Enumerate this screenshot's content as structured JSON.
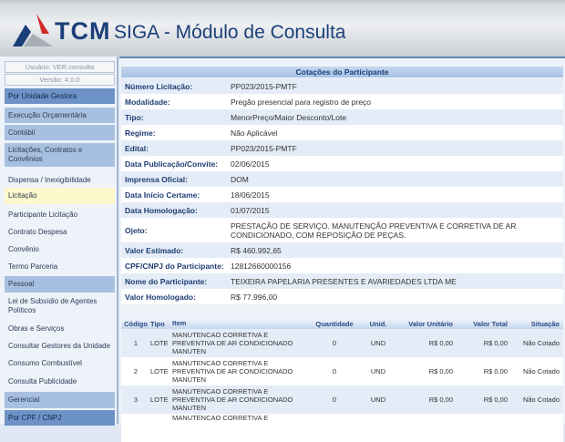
{
  "header": {
    "brand": "TCM",
    "title": "SIGA - Módulo de Consulta"
  },
  "sidebar": {
    "user": "Usuário: VER.consulta",
    "version": "Versão: 4.0.0",
    "items": [
      {
        "label": "Por Unidade Gestora",
        "type": "group-dark"
      },
      {
        "label": "Execução Orçamentária",
        "type": "group"
      },
      {
        "label": "Contábil",
        "type": "group"
      },
      {
        "label": "Licitações, Contratos e Convênios",
        "type": "group"
      },
      {
        "label": "Dispensa / Inexigibilidade",
        "type": "item"
      },
      {
        "label": "Licitação",
        "type": "selected"
      },
      {
        "label": "Participante Licitação",
        "type": "item"
      },
      {
        "label": "Contrato Despesa",
        "type": "item"
      },
      {
        "label": "Convênio",
        "type": "item"
      },
      {
        "label": "Termo Parceria",
        "type": "item"
      },
      {
        "label": "Pessoal",
        "type": "group"
      },
      {
        "label": "Lei de Subsídio de Agentes Políticos",
        "type": "item"
      },
      {
        "label": "Obras e Serviços",
        "type": "item"
      },
      {
        "label": "Consultar Gestores da Unidade",
        "type": "item"
      },
      {
        "label": "Consumo Combustível",
        "type": "item"
      },
      {
        "label": "Consulta Publicidade",
        "type": "item"
      },
      {
        "label": "Gerencial",
        "type": "group"
      },
      {
        "label": "Por CPF / CNPJ",
        "type": "group-dark"
      }
    ]
  },
  "main": {
    "title": "Cotações do Participante",
    "fields": [
      {
        "label": "Número Licitação:",
        "value": "PP023/2015-PMTF"
      },
      {
        "label": "Modalidade:",
        "value": "Pregão presencial para registro de preço"
      },
      {
        "label": "Tipo:",
        "value": "MenorPreço/Maior Desconto/Lote"
      },
      {
        "label": "Regime:",
        "value": "Não Aplicável"
      },
      {
        "label": "Edital:",
        "value": "PP023/2015-PMTF"
      },
      {
        "label": "Data Publicação/Convite:",
        "value": "02/06/2015"
      },
      {
        "label": "Imprensa Oficial:",
        "value": "DOM"
      },
      {
        "label": "Data Início Certame:",
        "value": "18/06/2015"
      },
      {
        "label": "Data Homologação:",
        "value": "01/07/2015"
      },
      {
        "label": "Ojeto:",
        "value": "PRESTAÇÃO DE SERVIÇO. MANUTENÇÃO PREVENTIVA E CORRETIVA DE AR CONDICIONADO, COM REPOSIÇÃO DE PEÇAS."
      },
      {
        "label": "Valor Estimado:",
        "value": "R$ 460.992,65"
      },
      {
        "label": "CPF/CNPJ do Participante:",
        "value": "12812660000156"
      },
      {
        "label": "Nome do Participante:",
        "value": "TEIXEIRA PAPELARIA PRESENTES E AVARIEDADES LTDA ME"
      },
      {
        "label": "Valor Homologado:",
        "value": "R$ 77.996,00"
      }
    ],
    "table": {
      "headers": [
        "Código",
        "Tipo",
        "Item",
        "Quantidade",
        "Unid.",
        "Valor Unitário",
        "Valor Total",
        "Situação"
      ],
      "rows": [
        [
          "1",
          "LOTE",
          "MANUTENCAO CORRETIVA E PREVENTIVA DE AR CONDICIONADO MANUTEN",
          "0",
          "UND",
          "R$ 0,00",
          "R$ 0,00",
          "Não Cotado"
        ],
        [
          "2",
          "LOTE",
          "MANUTENCAO CORRETIVA E PREVENTIVA DE AR CONDICIONADO MANUTEN",
          "0",
          "UND",
          "R$ 0,00",
          "R$ 0,00",
          "Não Cotado"
        ],
        [
          "3",
          "LOTE",
          "MANUTENCAO CORRETIVA E PREVENTIVA DE AR CONDICIONADO MANUTEN",
          "0",
          "UND",
          "R$ 0,00",
          "R$ 0,00",
          "Não Cotado"
        ],
        [
          "",
          "",
          "MANUTENCAO CORRETIVA E",
          "",
          "",
          "",
          "",
          ""
        ]
      ]
    }
  }
}
